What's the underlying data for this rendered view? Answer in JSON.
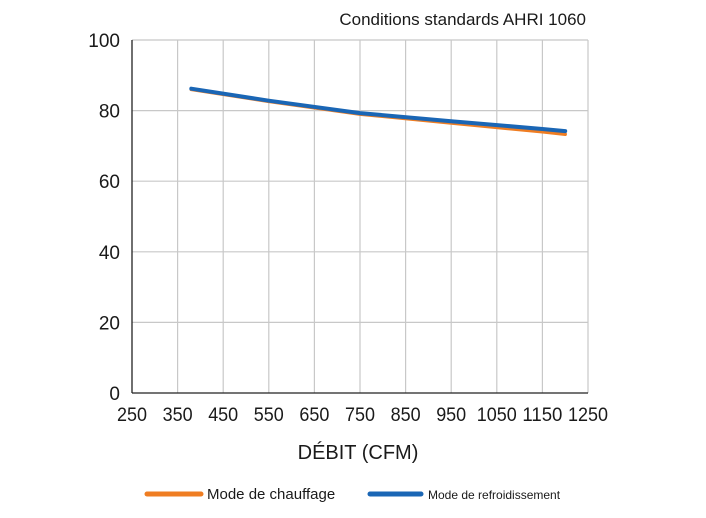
{
  "chart_data": {
    "type": "line",
    "title": "Conditions standards AHRI 1060",
    "xlabel": "DÉBIT (CFM)",
    "ylabel": "",
    "xlim": [
      250,
      1250
    ],
    "ylim": [
      0,
      100
    ],
    "xticks": [
      250,
      350,
      450,
      550,
      650,
      750,
      850,
      950,
      1050,
      1150,
      1250
    ],
    "yticks": [
      0,
      20,
      40,
      60,
      80,
      100
    ],
    "grid": true,
    "legend": "bottom-center",
    "series": [
      {
        "name": "Mode de chauffage",
        "color": "#ef7d22",
        "x": [
          380,
          550,
          750,
          950,
          1150,
          1200
        ],
        "y": [
          86,
          82.6,
          79,
          76.5,
          74,
          73.3
        ]
      },
      {
        "name": "Mode de refroidissement",
        "color": "#1a66b5",
        "x": [
          380,
          550,
          750,
          950,
          1150,
          1200
        ],
        "y": [
          86.2,
          82.8,
          79.3,
          77,
          74.8,
          74.2
        ]
      }
    ]
  },
  "colors": {
    "grid": "#c8c8c8",
    "axis": "#222222",
    "text": "#1a1a1a"
  }
}
